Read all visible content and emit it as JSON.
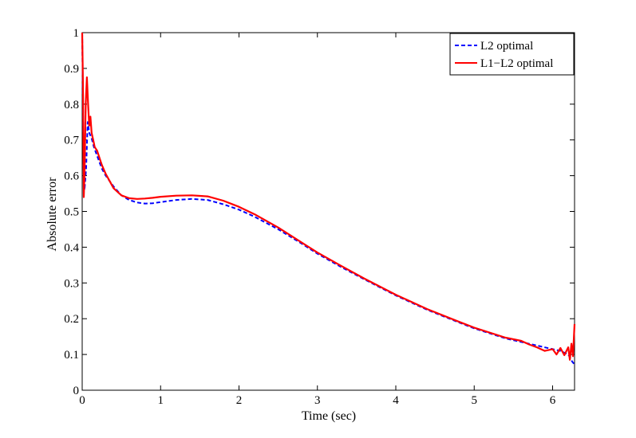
{
  "chart_data": {
    "type": "line",
    "title": "",
    "xlabel": "Time (sec)",
    "ylabel": "Absolute error",
    "xlim": [
      0,
      6.28
    ],
    "ylim": [
      0,
      1
    ],
    "x_ticks": [
      "0",
      "1",
      "2",
      "3",
      "4",
      "5",
      "6"
    ],
    "y_ticks": [
      "0",
      "0.1",
      "0.2",
      "0.3",
      "0.4",
      "0.5",
      "0.6",
      "0.7",
      "0.8",
      "0.9",
      "1"
    ],
    "x_tick_values": [
      0,
      1,
      2,
      3,
      4,
      5,
      6
    ],
    "y_tick_values": [
      0,
      0.1,
      0.2,
      0.3,
      0.4,
      0.5,
      0.6,
      0.7,
      0.8,
      0.9,
      1
    ],
    "grid": false,
    "legend_position": "top-right",
    "series": [
      {
        "name": "L2 optimal",
        "color": "#0000ff",
        "style": "dashed",
        "x": [
          0,
          0.01,
          0.02,
          0.03,
          0.05,
          0.07,
          0.09,
          0.12,
          0.15,
          0.2,
          0.25,
          0.3,
          0.4,
          0.5,
          0.6,
          0.7,
          0.8,
          0.9,
          1.0,
          1.2,
          1.4,
          1.6,
          1.8,
          2.0,
          2.2,
          2.5,
          2.8,
          3.0,
          3.3,
          3.6,
          4.0,
          4.4,
          4.8,
          5.0,
          5.4,
          5.8,
          6.0,
          6.1,
          6.15,
          6.2,
          6.25,
          6.28
        ],
        "y": [
          1.0,
          0.8,
          0.6,
          0.56,
          0.62,
          0.75,
          0.72,
          0.705,
          0.68,
          0.65,
          0.62,
          0.6,
          0.57,
          0.545,
          0.532,
          0.525,
          0.522,
          0.523,
          0.526,
          0.532,
          0.535,
          0.532,
          0.52,
          0.505,
          0.485,
          0.45,
          0.41,
          0.382,
          0.345,
          0.31,
          0.265,
          0.225,
          0.19,
          0.173,
          0.145,
          0.125,
          0.115,
          0.11,
          0.105,
          0.1,
          0.08,
          0.072
        ]
      },
      {
        "name": "L1−L2 optimal",
        "color": "#ff0000",
        "style": "solid",
        "x": [
          0,
          0.01,
          0.02,
          0.03,
          0.045,
          0.06,
          0.075,
          0.09,
          0.105,
          0.12,
          0.14,
          0.16,
          0.19,
          0.22,
          0.25,
          0.3,
          0.35,
          0.4,
          0.5,
          0.6,
          0.7,
          0.8,
          0.9,
          1.0,
          1.2,
          1.4,
          1.6,
          1.8,
          2.0,
          2.2,
          2.5,
          2.8,
          3.0,
          3.3,
          3.6,
          4.0,
          4.4,
          4.8,
          5.0,
          5.4,
          5.6,
          5.7,
          5.8,
          5.9,
          6.0,
          6.05,
          6.1,
          6.15,
          6.2,
          6.22,
          6.24,
          6.26,
          6.28
        ],
        "y": [
          1.0,
          0.85,
          0.54,
          0.6,
          0.8,
          0.875,
          0.8,
          0.74,
          0.765,
          0.72,
          0.7,
          0.68,
          0.67,
          0.65,
          0.63,
          0.605,
          0.585,
          0.565,
          0.545,
          0.537,
          0.535,
          0.536,
          0.538,
          0.541,
          0.544,
          0.545,
          0.542,
          0.53,
          0.513,
          0.492,
          0.455,
          0.413,
          0.385,
          0.348,
          0.312,
          0.267,
          0.227,
          0.192,
          0.175,
          0.147,
          0.138,
          0.128,
          0.12,
          0.11,
          0.115,
          0.1,
          0.118,
          0.098,
          0.12,
          0.085,
          0.13,
          0.095,
          0.185
        ]
      }
    ]
  }
}
